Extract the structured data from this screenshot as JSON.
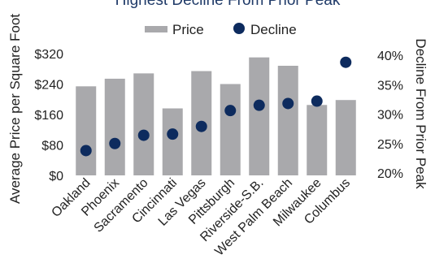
{
  "chart_data": {
    "type": "bar",
    "title": "Highest Decline From Prior Peak",
    "categories": [
      "Oakland",
      "Phoenix",
      "Sacramento",
      "Cincinnati",
      "Las Vegas",
      "Pittsburgh",
      "Riverside-S.B.",
      "West Palm Beach",
      "Milwaukee",
      "Columbus"
    ],
    "series": [
      {
        "name": "Price",
        "kind": "bar",
        "axis": "left",
        "color": "#a9a9ac",
        "values": [
          234,
          254,
          268,
          176,
          274,
          240,
          310,
          288,
          185,
          198
        ]
      },
      {
        "name": "Decline",
        "kind": "scatter",
        "axis": "right",
        "color": "#0d2b5e",
        "values": [
          23.8,
          25.0,
          26.4,
          26.6,
          27.9,
          30.6,
          31.5,
          31.8,
          32.2,
          38.8
        ]
      }
    ],
    "ylabel": "Average Price per Square Foot",
    "y2label": "Decline From Prior Peak",
    "ylim": [
      0,
      320
    ],
    "y2lim": [
      20,
      40
    ],
    "yticks": [
      "$0",
      "$80",
      "$160",
      "$240",
      "$320"
    ],
    "y2ticks": [
      "20%",
      "25%",
      "30%",
      "35%",
      "40%"
    ],
    "legend": [
      "Price",
      "Decline"
    ],
    "legend_position": "top",
    "grid": false
  }
}
